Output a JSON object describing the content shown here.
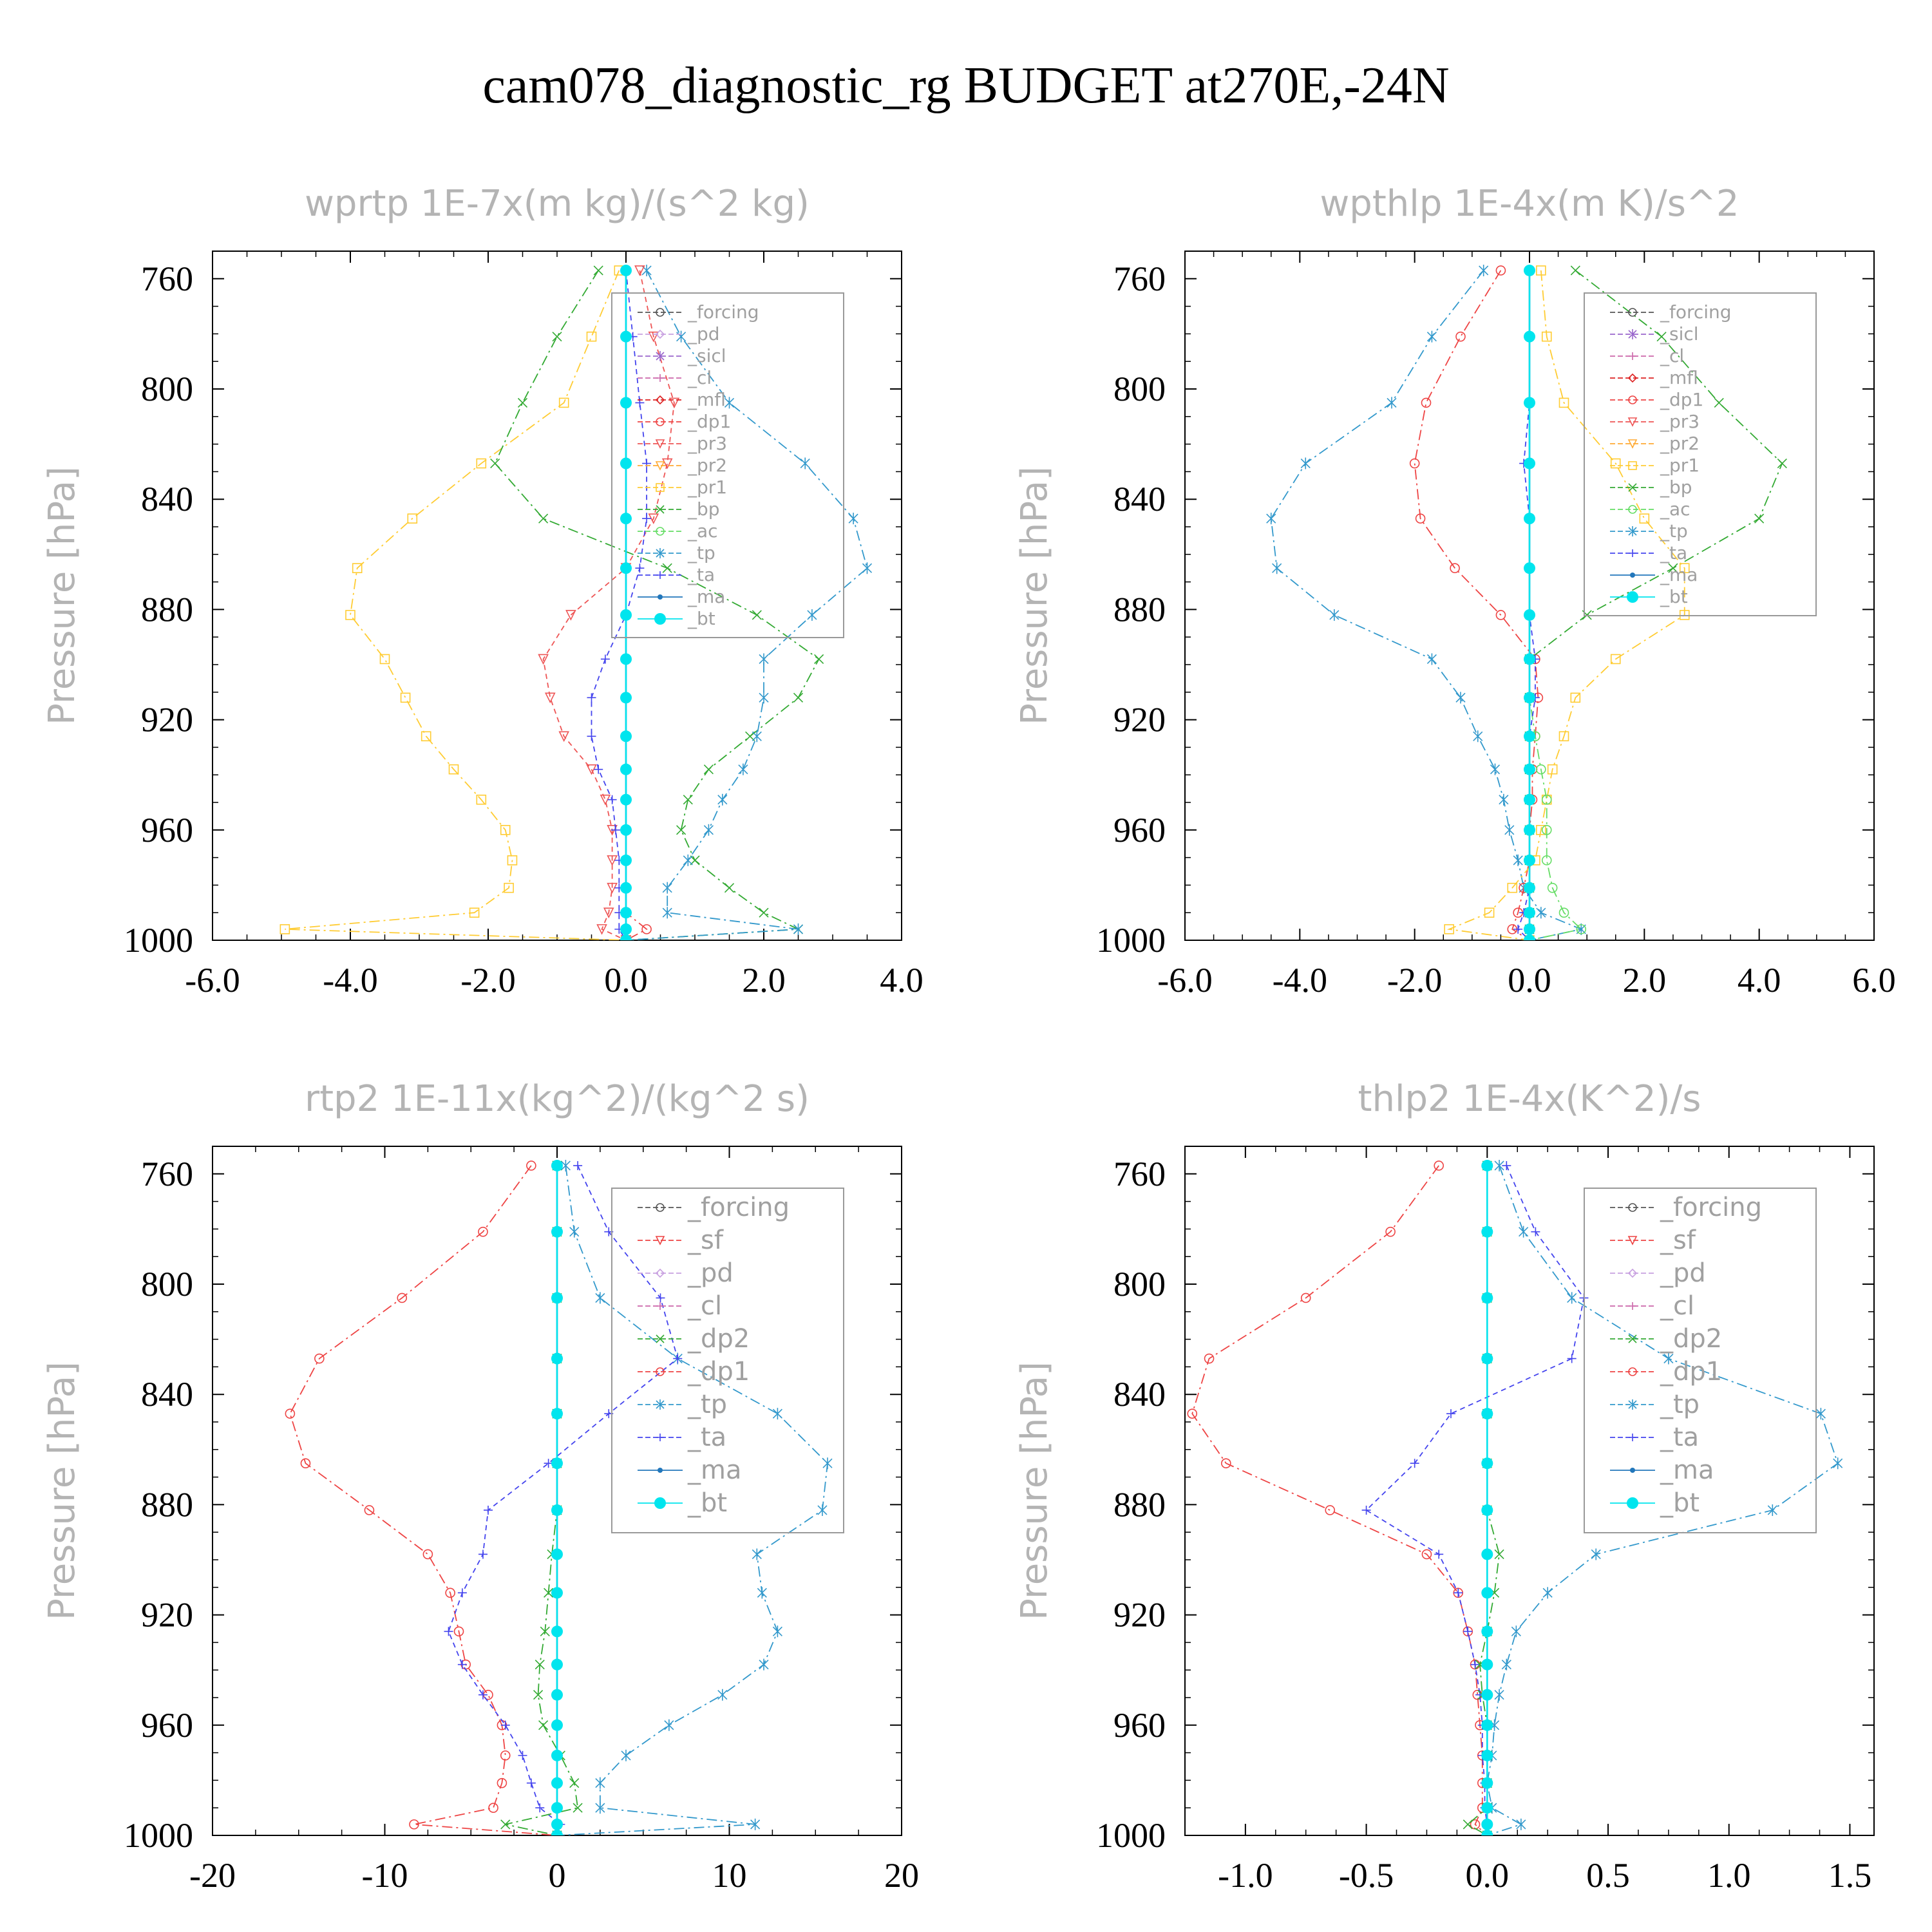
{
  "title": "cam078_diagnostic_rg  BUDGET at270E,-24N",
  "colors": {
    "forcing": "#555555",
    "pd": "#c8a0e0",
    "sicl": "#9966cc",
    "cl": "#cc66aa",
    "mfl": "#dd2222",
    "dp1": "#ee4444",
    "pr3": "#ee5555",
    "pr2": "#ffaa33",
    "pr1": "#ffcc33",
    "bp": "#33aa33",
    "ac": "#66dd66",
    "tp": "#3399cc",
    "ta": "#4444ee",
    "ma": "#2277bb",
    "bt": "#00e5ee",
    "sf": "#ee4444",
    "dp2": "#33aa33",
    "axis": "#000000",
    "title_gray": "#b4b4b4"
  },
  "chart_data": [
    {
      "type": "line",
      "title": "wprtp  1E-7x(m kg)/(s^2 kg)",
      "ylabel": "Pressure [hPa]",
      "xlim": [
        -6,
        4
      ],
      "ylim": [
        1000,
        750
      ],
      "yinvert": true,
      "xticks": [
        "-6.0",
        "-4.0",
        "-2.0",
        "0.0",
        "2.0",
        "4.0"
      ],
      "yticks": [
        "760",
        "800",
        "840",
        "880",
        "920",
        "960",
        "1000"
      ],
      "legend_position": "top-right",
      "legend": [
        "_forcing",
        "_pd",
        "_sicl",
        "_cl",
        "_mfl",
        "_dp1",
        "_pr3",
        "_pr2",
        "_pr1",
        "_bp",
        "_ac",
        "_tp",
        "_ta",
        "_ma",
        "_bt"
      ],
      "levels": [
        757,
        781,
        805,
        827,
        847,
        865,
        882,
        898,
        912,
        926,
        938,
        949,
        960,
        971,
        981,
        990,
        996,
        1000
      ],
      "series": [
        {
          "name": "_pr1",
          "values": [
            -0.1,
            -0.5,
            -0.9,
            -2.1,
            -3.1,
            -3.9,
            -4.0,
            -3.5,
            -3.2,
            -2.9,
            -2.5,
            -2.1,
            -1.75,
            -1.65,
            -1.7,
            -2.2,
            -4.95,
            0
          ]
        },
        {
          "name": "_bp",
          "values": [
            -0.4,
            -1.0,
            -1.5,
            -1.9,
            -1.2,
            0.6,
            1.9,
            2.8,
            2.5,
            1.8,
            1.2,
            0.9,
            0.8,
            1.0,
            1.5,
            2.0,
            2.5,
            0
          ]
        },
        {
          "name": "_tp",
          "values": [
            0.3,
            0.8,
            1.5,
            2.6,
            3.3,
            3.5,
            2.7,
            2.0,
            2.0,
            1.9,
            1.7,
            1.4,
            1.2,
            0.9,
            0.6,
            0.6,
            2.5,
            0
          ]
        },
        {
          "name": "_pr3",
          "values": [
            0.2,
            0.4,
            0.7,
            0.6,
            0.4,
            0.0,
            -0.8,
            -1.2,
            -1.1,
            -0.9,
            -0.5,
            -0.3,
            -0.2,
            -0.2,
            -0.2,
            -0.25,
            -0.35,
            0
          ]
        },
        {
          "name": "_ta",
          "values": [
            0.0,
            0.1,
            0.2,
            0.3,
            0.3,
            0.2,
            0.0,
            -0.3,
            -0.5,
            -0.5,
            -0.4,
            -0.2,
            -0.15,
            -0.1,
            -0.1,
            -0.1,
            -0.1,
            0
          ]
        },
        {
          "name": "_dp1",
          "values": [
            0,
            0,
            0,
            0,
            0,
            0,
            0,
            0,
            0,
            0,
            0,
            0,
            0,
            0,
            0,
            0,
            0.3,
            0
          ]
        },
        {
          "name": "_ma",
          "values": [
            0,
            0,
            0,
            0,
            0,
            0,
            0,
            0,
            0,
            0,
            0,
            0,
            0,
            0,
            0,
            0,
            0,
            0
          ]
        },
        {
          "name": "_bt",
          "values": [
            0,
            0,
            0,
            0,
            0,
            0,
            0,
            0,
            0,
            0,
            0,
            0,
            0,
            0,
            0,
            0,
            0,
            0
          ]
        }
      ]
    },
    {
      "type": "line",
      "title": "wpthlp  1E-4x(m K)/s^2",
      "ylabel": "Pressure [hPa]",
      "xlim": [
        -6,
        6
      ],
      "ylim": [
        1000,
        750
      ],
      "yinvert": true,
      "xticks": [
        "-6.0",
        "-4.0",
        "-2.0",
        "0.0",
        "2.0",
        "4.0",
        "6.0"
      ],
      "yticks": [
        "760",
        "800",
        "840",
        "880",
        "920",
        "960",
        "1000"
      ],
      "legend_position": "top-right",
      "legend": [
        "_forcing",
        "_sicl",
        "_cl",
        "_mfl",
        "_dp1",
        "_pr3",
        "_pr2",
        "_pr1",
        "_bp",
        "_ac",
        "_tp",
        "_ta",
        "_ma",
        "_bt"
      ],
      "levels": [
        757,
        781,
        805,
        827,
        847,
        865,
        882,
        898,
        912,
        926,
        938,
        949,
        960,
        971,
        981,
        990,
        996,
        1000
      ],
      "series": [
        {
          "name": "_tp",
          "values": [
            -0.8,
            -1.7,
            -2.4,
            -3.9,
            -4.5,
            -4.4,
            -3.4,
            -1.7,
            -1.2,
            -0.9,
            -0.6,
            -0.45,
            -0.35,
            -0.2,
            -0.1,
            0.2,
            0.9,
            0
          ]
        },
        {
          "name": "_dp1",
          "values": [
            -0.5,
            -1.2,
            -1.8,
            -2.0,
            -1.9,
            -1.3,
            -0.5,
            0.1,
            0.15,
            0.1,
            0.05,
            0.05,
            0.0,
            0.0,
            -0.1,
            -0.2,
            -0.3,
            0
          ]
        },
        {
          "name": "_bp",
          "values": [
            0.8,
            2.3,
            3.3,
            4.4,
            4.0,
            2.5,
            1.0,
            0,
            0,
            0,
            0,
            0,
            0,
            0,
            0,
            0,
            0,
            0
          ]
        },
        {
          "name": "_pr1",
          "values": [
            0.2,
            0.3,
            0.6,
            1.5,
            2.0,
            2.7,
            2.7,
            1.5,
            0.8,
            0.6,
            0.4,
            0.3,
            0.2,
            0.1,
            -0.3,
            -0.7,
            -1.4,
            0
          ]
        },
        {
          "name": "_ac",
          "values": [
            0,
            0,
            0,
            0,
            0,
            0,
            0,
            0,
            0,
            0.1,
            0.2,
            0.3,
            0.3,
            0.3,
            0.4,
            0.6,
            0.9,
            0
          ]
        },
        {
          "name": "_ta",
          "values": [
            0.0,
            0.0,
            0.0,
            -0.1,
            0.0,
            0.0,
            0.0,
            0.1,
            0.1,
            0.0,
            0.0,
            0.0,
            0.0,
            0.0,
            0.0,
            -0.1,
            -0.2,
            0
          ]
        },
        {
          "name": "_ma",
          "values": [
            0,
            0,
            0,
            0,
            0,
            0,
            0,
            0,
            0,
            0,
            0,
            0,
            0,
            0,
            0,
            0,
            0,
            0
          ]
        },
        {
          "name": "_bt",
          "values": [
            0,
            0,
            0,
            0,
            0,
            0,
            0,
            0,
            0,
            0,
            0,
            0,
            0,
            0,
            0,
            0,
            0,
            0
          ]
        }
      ]
    },
    {
      "type": "line",
      "title": "rtp2  1E-11x(kg^2)/(kg^2 s)",
      "ylabel": "Pressure [hPa]",
      "xlim": [
        -20,
        20
      ],
      "ylim": [
        1000,
        750
      ],
      "yinvert": true,
      "xticks": [
        "-20",
        "-10",
        "0",
        "10",
        "20"
      ],
      "yticks": [
        "760",
        "800",
        "840",
        "880",
        "920",
        "960",
        "1000"
      ],
      "legend_position": "top-right",
      "legend": [
        "_forcing",
        "_sf",
        "_pd",
        "_cl",
        "_dp2",
        "_dp1",
        "_tp",
        "_ta",
        "_ma",
        "_bt"
      ],
      "levels": [
        757,
        781,
        805,
        827,
        847,
        865,
        882,
        898,
        912,
        926,
        938,
        949,
        960,
        971,
        981,
        990,
        996,
        1000
      ],
      "series": [
        {
          "name": "_dp1",
          "values": [
            -1.5,
            -4.3,
            -9.0,
            -13.8,
            -15.5,
            -14.6,
            -10.9,
            -7.5,
            -6.2,
            -5.7,
            -5.3,
            -4.0,
            -3.2,
            -3.0,
            -3.2,
            -3.7,
            -8.3,
            0
          ]
        },
        {
          "name": "_tp",
          "values": [
            0.5,
            1.0,
            2.5,
            7.0,
            12.8,
            15.7,
            15.4,
            11.6,
            11.9,
            12.8,
            12.0,
            9.6,
            6.5,
            4.0,
            2.5,
            2.5,
            11.5,
            0
          ]
        },
        {
          "name": "_ta",
          "values": [
            1.2,
            3.0,
            6.0,
            7.0,
            3.0,
            -0.5,
            -4.0,
            -4.3,
            -5.5,
            -6.3,
            -5.5,
            -4.3,
            -3.0,
            -2.0,
            -1.5,
            -1.0,
            0.2,
            0
          ]
        },
        {
          "name": "_dp2",
          "values": [
            0,
            0,
            0,
            0,
            0,
            0,
            0,
            -0.3,
            -0.5,
            -0.7,
            -1.0,
            -1.1,
            -0.8,
            0.2,
            1.0,
            1.2,
            -3.0,
            0
          ]
        },
        {
          "name": "_ma",
          "values": [
            0,
            0,
            0,
            0,
            0,
            0,
            0,
            0,
            0,
            0,
            0,
            0,
            0,
            0,
            0,
            0,
            0,
            0
          ]
        },
        {
          "name": "_bt",
          "values": [
            0,
            0,
            0,
            0,
            0,
            0,
            0,
            0,
            0,
            0,
            0,
            0,
            0,
            0,
            0,
            0,
            0,
            0
          ]
        }
      ]
    },
    {
      "type": "line",
      "title": "thlp2  1E-4x(K^2)/s",
      "ylabel": "Pressure [hPa]",
      "xlim": [
        -1.25,
        1.6
      ],
      "ylim": [
        1000,
        750
      ],
      "yinvert": true,
      "xticks": [
        "-1.0",
        "-0.5",
        "0.0",
        "0.5",
        "1.0",
        "1.5"
      ],
      "yticks": [
        "760",
        "800",
        "840",
        "880",
        "920",
        "960",
        "1000"
      ],
      "legend_position": "top-right",
      "legend": [
        "_forcing",
        "_sf",
        "_pd",
        "_cl",
        "_dp2",
        "_dp1",
        "_tp",
        "_ta",
        "_ma",
        "_bt"
      ],
      "levels": [
        757,
        781,
        805,
        827,
        847,
        865,
        882,
        898,
        912,
        926,
        938,
        949,
        960,
        971,
        981,
        990,
        996,
        1000
      ],
      "series": [
        {
          "name": "_dp1",
          "values": [
            -0.2,
            -0.4,
            -0.75,
            -1.15,
            -1.22,
            -1.08,
            -0.65,
            -0.25,
            -0.12,
            -0.08,
            -0.05,
            -0.04,
            -0.03,
            -0.02,
            -0.02,
            -0.02,
            -0.05,
            0
          ]
        },
        {
          "name": "_tp",
          "values": [
            0.05,
            0.15,
            0.35,
            0.75,
            1.38,
            1.45,
            1.18,
            0.45,
            0.25,
            0.12,
            0.08,
            0.05,
            0.03,
            0.02,
            0.0,
            0.02,
            0.14,
            0
          ]
        },
        {
          "name": "_ta",
          "values": [
            0.08,
            0.2,
            0.4,
            0.35,
            -0.15,
            -0.3,
            -0.5,
            -0.2,
            -0.12,
            -0.08,
            -0.05,
            -0.03,
            -0.02,
            -0.02,
            -0.01,
            -0.01,
            0.0,
            0
          ]
        },
        {
          "name": "_dp2",
          "values": [
            0,
            0,
            0,
            0,
            0,
            0,
            0,
            0.05,
            0.03,
            0.0,
            -0.03,
            -0.02,
            0.0,
            0.0,
            0.0,
            0.0,
            -0.08,
            0
          ]
        },
        {
          "name": "_ma",
          "values": [
            0,
            0,
            0,
            0,
            0,
            0,
            0,
            0,
            0,
            0,
            0,
            0,
            0,
            0,
            0,
            0,
            0,
            0
          ]
        },
        {
          "name": "_bt",
          "values": [
            0,
            0,
            0,
            0,
            0,
            0,
            0,
            0,
            0,
            0,
            0,
            0,
            0,
            0,
            0,
            0,
            0,
            0
          ]
        }
      ]
    }
  ]
}
